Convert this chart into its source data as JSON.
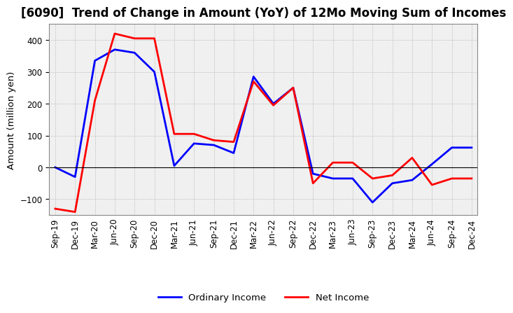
{
  "title": "[6090]  Trend of Change in Amount (YoY) of 12Mo Moving Sum of Incomes",
  "ylabel": "Amount (million yen)",
  "x_labels": [
    "Sep-19",
    "Dec-19",
    "Mar-20",
    "Jun-20",
    "Sep-20",
    "Dec-20",
    "Mar-21",
    "Jun-21",
    "Sep-21",
    "Dec-21",
    "Mar-22",
    "Jun-22",
    "Sep-22",
    "Dec-22",
    "Mar-23",
    "Jun-23",
    "Sep-23",
    "Dec-23",
    "Mar-24",
    "Jun-24",
    "Sep-24",
    "Dec-24"
  ],
  "ordinary_income": [
    0,
    -30,
    335,
    370,
    360,
    300,
    5,
    75,
    70,
    45,
    285,
    200,
    250,
    -20,
    -35,
    -35,
    -110,
    -50,
    -40,
    10,
    62,
    62
  ],
  "net_income": [
    -130,
    -140,
    210,
    420,
    405,
    405,
    105,
    105,
    85,
    80,
    270,
    195,
    250,
    -50,
    15,
    15,
    -35,
    -25,
    30,
    -55,
    -35,
    -35
  ],
  "ordinary_color": "#0000ff",
  "net_color": "#ff0000",
  "ylim": [
    -150,
    450
  ],
  "yticks": [
    -100,
    0,
    100,
    200,
    300,
    400
  ],
  "grid_color": "#aaaaaa",
  "background_color": "#ffffff",
  "plot_bg_color": "#f0f0f0",
  "title_fontsize": 12,
  "label_fontsize": 9.5,
  "tick_fontsize": 8.5
}
